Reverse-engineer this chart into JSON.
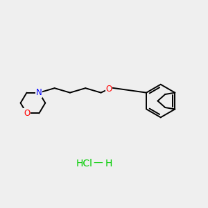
{
  "bg_color": "#efefef",
  "bond_color": "#000000",
  "N_color": "#0000ff",
  "O_color": "#ff0000",
  "HCl_color": "#00cc00",
  "line_width": 1.4,
  "HCl_text": "HCl",
  "dash_text": "—",
  "H_text": "H",
  "N_text": "N",
  "O_morph_text": "O",
  "O_ether_text": "O"
}
